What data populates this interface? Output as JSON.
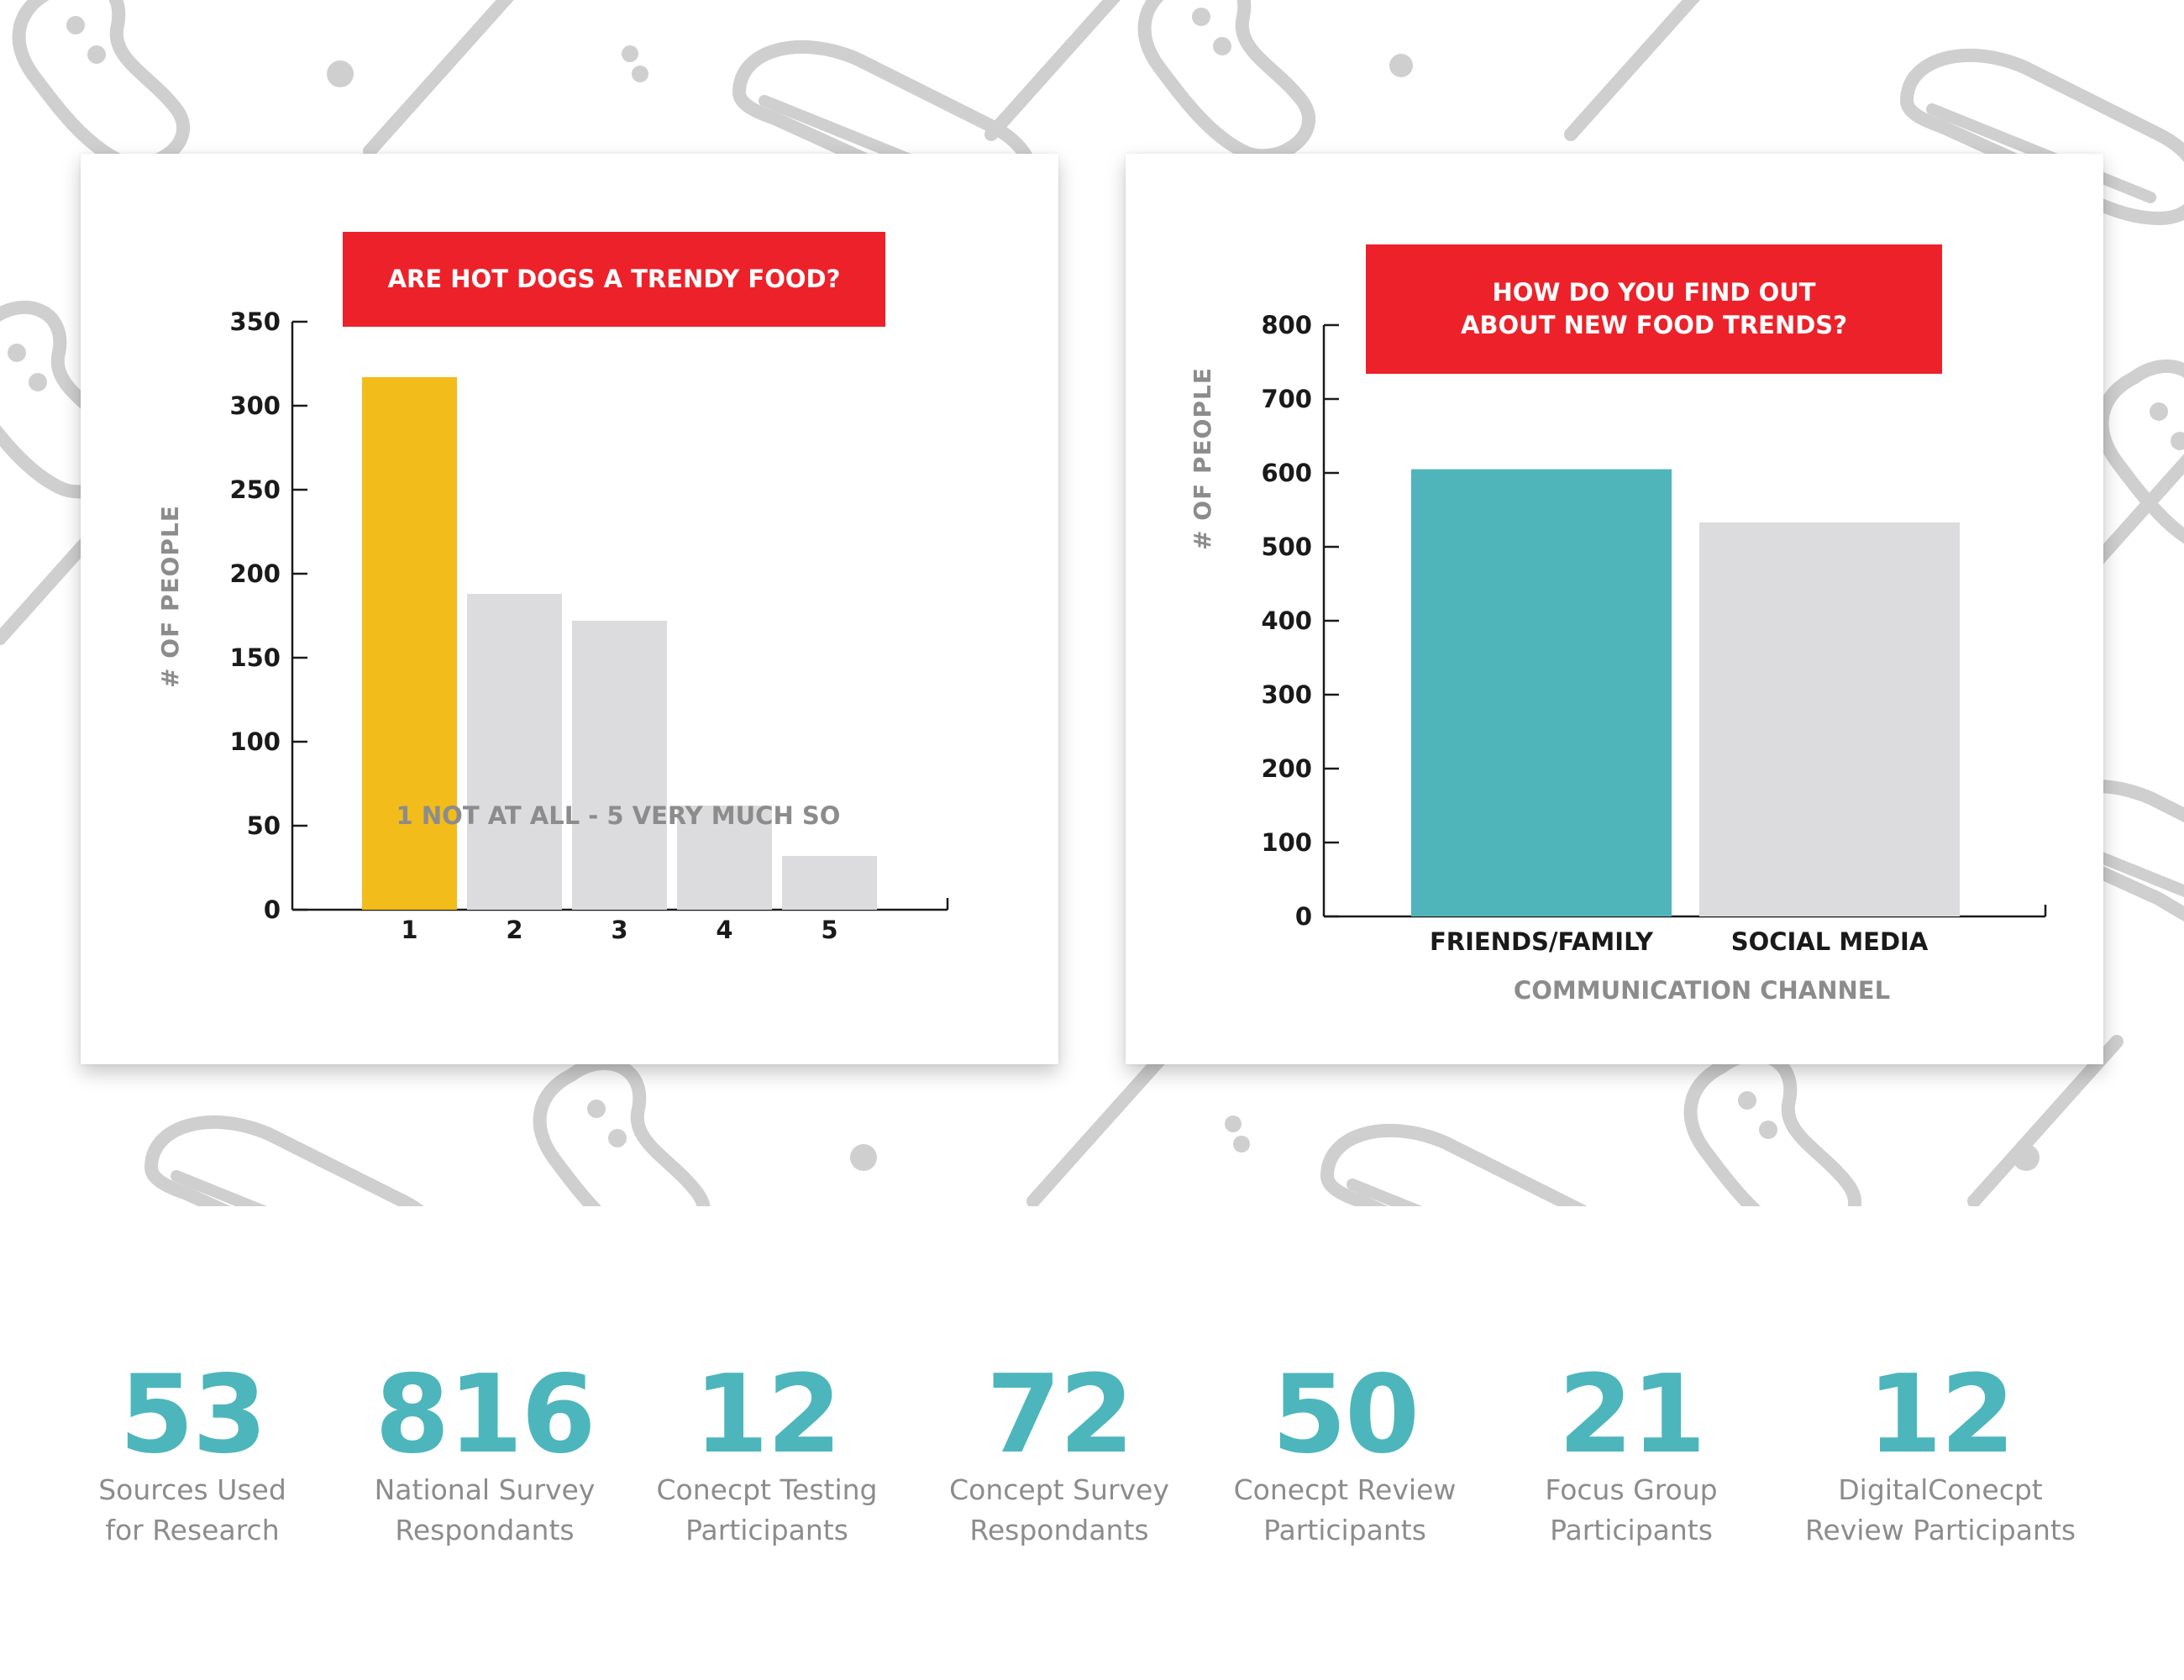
{
  "colors": {
    "title_bg": "#ed2129",
    "highlight_bar": "#f2bc1b",
    "teal_bar": "#4fb5bb",
    "gray_bar": "#dcdcde",
    "stat_number": "#4cb6bc",
    "pattern": "#cfcfcf"
  },
  "chart_data": [
    {
      "type": "bar",
      "title": "ARE HOT DOGS A TRENDY FOOD?",
      "xlabel": "1 NOT AT ALL - 5 VERY MUCH SO",
      "ylabel": "# OF PEOPLE",
      "categories": [
        "1",
        "2",
        "3",
        "4",
        "5"
      ],
      "values": [
        317,
        188,
        172,
        62,
        32
      ],
      "bar_colors": [
        "#f2bc1b",
        "#dcdcde",
        "#dcdcde",
        "#dcdcde",
        "#dcdcde"
      ],
      "ylim": [
        0,
        350
      ],
      "yticks": [
        0,
        50,
        100,
        150,
        200,
        250,
        300,
        350
      ],
      "grid": false,
      "legend": "none"
    },
    {
      "type": "bar",
      "title": "HOW DO YOU FIND OUT ABOUT NEW FOOD TRENDS?",
      "xlabel": "COMMUNICATION CHANNEL",
      "ylabel": "# OF PEOPLE",
      "categories": [
        "FRIENDS/FAMILY",
        "SOCIAL MEDIA"
      ],
      "values": [
        605,
        533
      ],
      "bar_colors": [
        "#4fb5bb",
        "#dcdcde"
      ],
      "ylim": [
        0,
        800
      ],
      "yticks": [
        0,
        100,
        200,
        300,
        400,
        500,
        600,
        700,
        800
      ],
      "grid": false,
      "legend": "none"
    }
  ],
  "stats": [
    {
      "value": "53",
      "line1": "Sources Used",
      "line2": "for Research"
    },
    {
      "value": "816",
      "line1": "National Survey",
      "line2": "Respondants"
    },
    {
      "value": "12",
      "line1": "Conecpt Testing",
      "line2": "Participants"
    },
    {
      "value": "72",
      "line1": "Concept Survey",
      "line2": "Respondants"
    },
    {
      "value": "50",
      "line1": "Conecpt Review",
      "line2": "Participants"
    },
    {
      "value": "21",
      "line1": "Focus Group",
      "line2": "Participants"
    },
    {
      "value": "12",
      "line1": "DigitalConecpt",
      "line2": "Review Participants"
    }
  ]
}
